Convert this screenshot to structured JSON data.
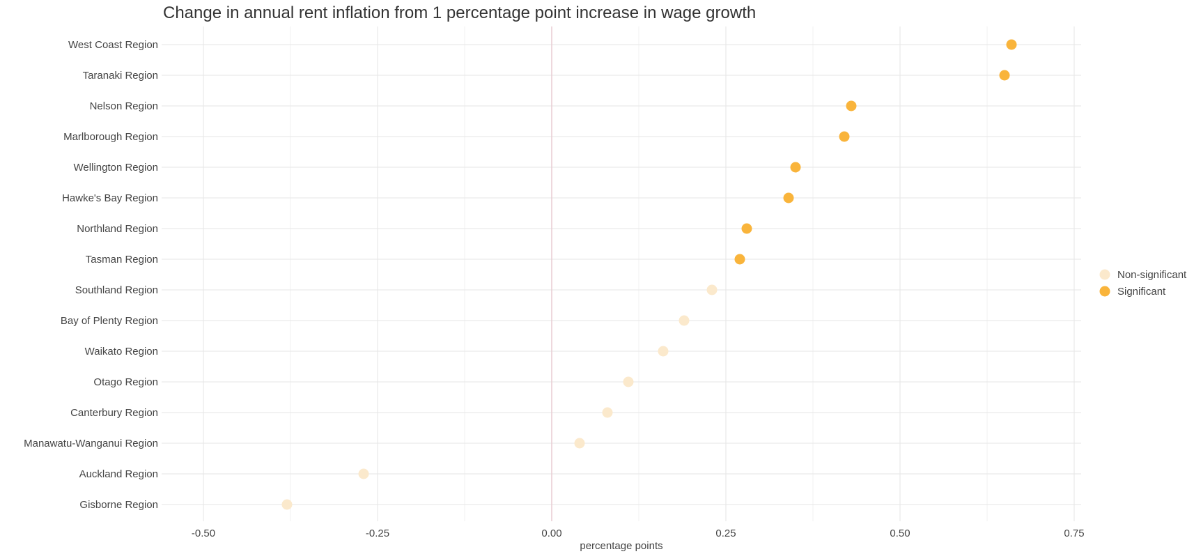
{
  "chart_data": {
    "type": "scatter",
    "title": "Change in annual rent inflation from 1 percentage point increase in wage growth",
    "xlabel": "percentage points",
    "ylabel": "",
    "xlim": [
      -0.56,
      0.76
    ],
    "xticks": [
      -0.5,
      -0.25,
      0,
      0.25,
      0.5,
      0.75
    ],
    "xtick_labels": [
      "-0.50",
      "-0.25",
      "0.00",
      "0.25",
      "0.50",
      "0.75"
    ],
    "grid": true,
    "reference_line_x": 0,
    "legend_position": "right",
    "groups": [
      {
        "name": "Non-significant",
        "color": "#fbe9cc"
      },
      {
        "name": "Significant",
        "color": "#f9b43b"
      }
    ],
    "points": [
      {
        "category": "West Coast Region",
        "value": 0.66,
        "group": "Significant"
      },
      {
        "category": "Taranaki Region",
        "value": 0.65,
        "group": "Significant"
      },
      {
        "category": "Nelson Region",
        "value": 0.43,
        "group": "Significant"
      },
      {
        "category": "Marlborough Region",
        "value": 0.42,
        "group": "Significant"
      },
      {
        "category": "Wellington Region",
        "value": 0.35,
        "group": "Significant"
      },
      {
        "category": "Hawke's Bay Region",
        "value": 0.34,
        "group": "Significant"
      },
      {
        "category": "Northland Region",
        "value": 0.28,
        "group": "Significant"
      },
      {
        "category": "Tasman Region",
        "value": 0.27,
        "group": "Significant"
      },
      {
        "category": "Southland Region",
        "value": 0.23,
        "group": "Non-significant"
      },
      {
        "category": "Bay of Plenty Region",
        "value": 0.19,
        "group": "Non-significant"
      },
      {
        "category": "Waikato Region",
        "value": 0.16,
        "group": "Non-significant"
      },
      {
        "category": "Otago Region",
        "value": 0.11,
        "group": "Non-significant"
      },
      {
        "category": "Canterbury Region",
        "value": 0.08,
        "group": "Non-significant"
      },
      {
        "category": "Manawatu-Wanganui Region",
        "value": 0.04,
        "group": "Non-significant"
      },
      {
        "category": "Auckland Region",
        "value": -0.27,
        "group": "Non-significant"
      },
      {
        "category": "Gisborne Region",
        "value": -0.38,
        "group": "Non-significant"
      }
    ]
  }
}
